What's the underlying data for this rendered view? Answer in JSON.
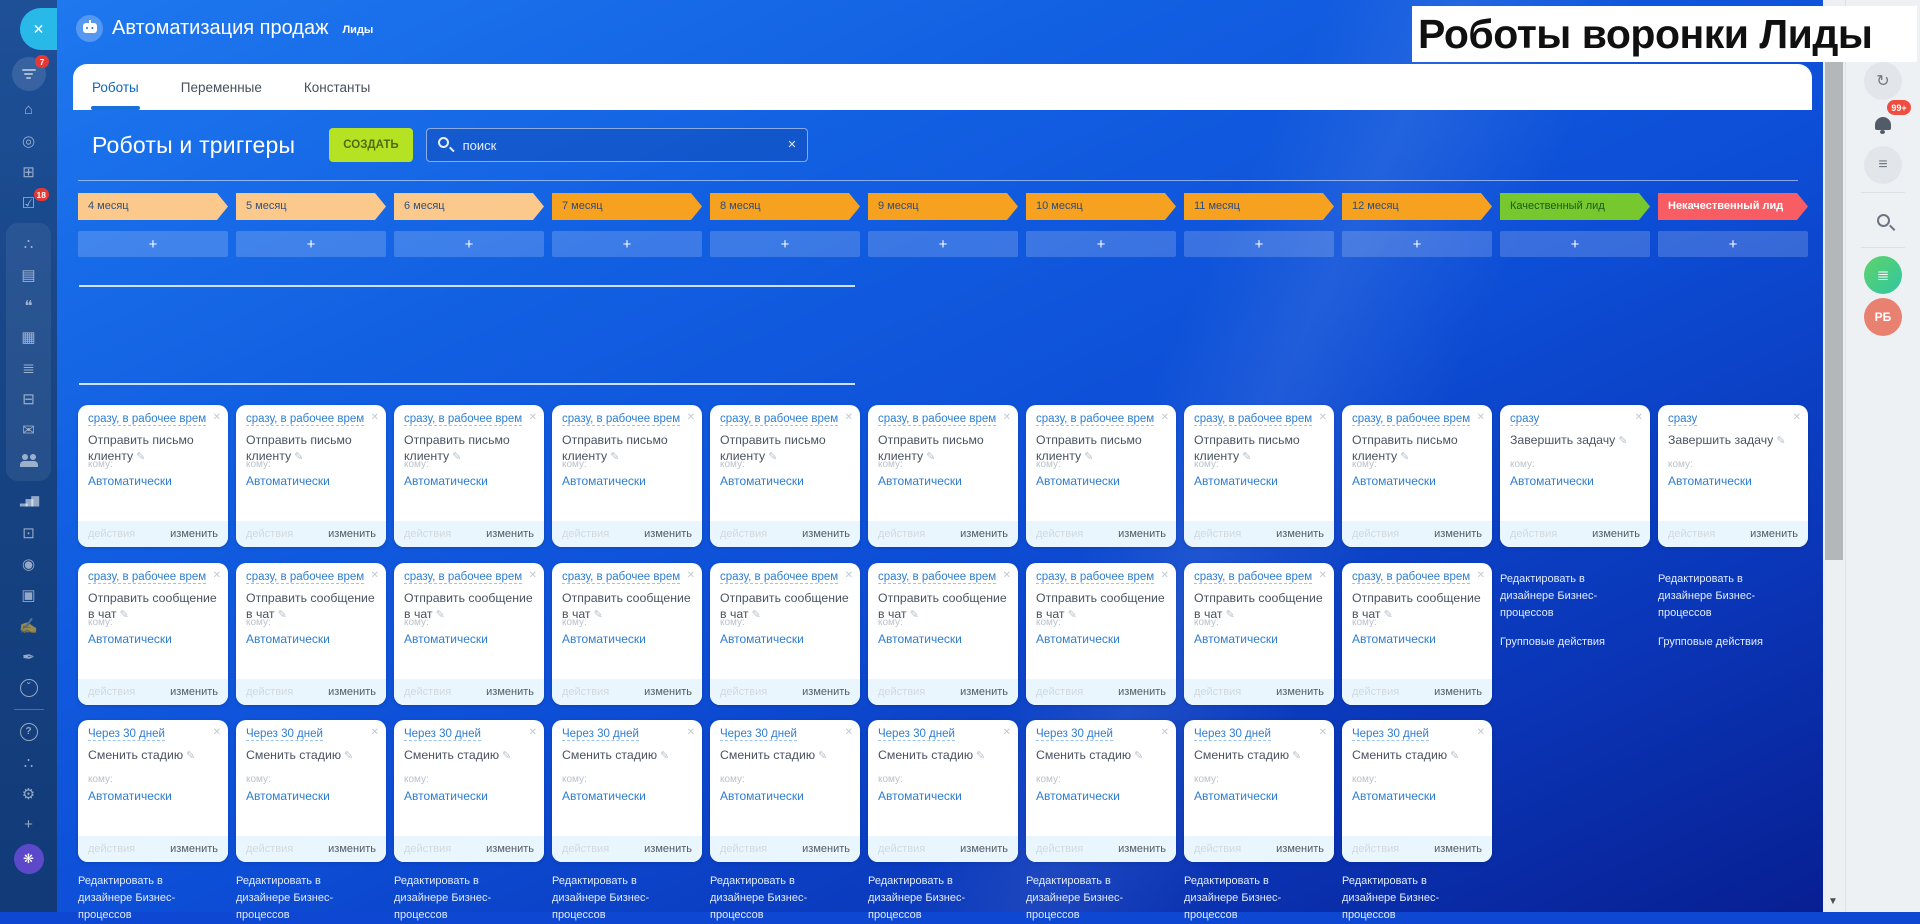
{
  "overlay": {
    "title": "Роботы воронки Лиды"
  },
  "app_header": {
    "title": "Автоматизация продаж",
    "entity": "Лиды"
  },
  "tabs": [
    {
      "label": "Роботы",
      "active": true
    },
    {
      "label": "Переменные",
      "active": false
    },
    {
      "label": "Константы",
      "active": false
    }
  ],
  "toolbar": {
    "heading": "Роботы и триггеры",
    "create_label": "СОЗДАТЬ",
    "search_placeholder": "поиск",
    "clear_icon": "✕"
  },
  "board": {
    "labels": {
      "to": "кому:",
      "assignee": "Автоматически",
      "actions": "действия",
      "edit": "изменить",
      "add": "+",
      "close": "✕",
      "pencil": "✎"
    },
    "links": {
      "designer": "Редактировать в дизайнере Бизнес-процессов",
      "group_actions": "Групповые действия"
    },
    "stages": [
      {
        "name": "4 месяц",
        "color": "#fbc98b",
        "text_color": "#33517d",
        "bottom_designer_link": true,
        "robots": [
          {
            "when": "сразу, в рабочее время",
            "action": "Отправить письмо клиенту"
          },
          {
            "when": "сразу, в рабочее врем...",
            "action": "Отправить сообщение в чат"
          },
          {
            "when": "Через 30 дней",
            "action": "Сменить стадию"
          }
        ]
      },
      {
        "name": "5 месяц",
        "color": "#fbc98b",
        "text_color": "#33517d",
        "bottom_designer_link": true,
        "robots": [
          {
            "when": "сразу, в рабочее время",
            "action": "Отправить письмо клиенту"
          },
          {
            "when": "сразу, в рабочее врем...",
            "action": "Отправить сообщение в чат"
          },
          {
            "when": "Через 30 дней",
            "action": "Сменить стадию"
          }
        ]
      },
      {
        "name": "6 месяц",
        "color": "#fbc98b",
        "text_color": "#33517d",
        "bottom_designer_link": true,
        "robots": [
          {
            "when": "сразу, в рабочее время",
            "action": "Отправить письмо клиенту"
          },
          {
            "when": "сразу, в рабочее врем...",
            "action": "Отправить сообщение в чат"
          },
          {
            "when": "Через 30 дней",
            "action": "Сменить стадию"
          }
        ]
      },
      {
        "name": "7 месяц",
        "color": "#f6a11f",
        "text_color": "#2d4d7c",
        "bottom_designer_link": true,
        "robots": [
          {
            "when": "сразу, в рабочее время",
            "action": "Отправить письмо клиенту"
          },
          {
            "when": "сразу, в рабочее врем...",
            "action": "Отправить сообщение в чат"
          },
          {
            "when": "Через 30 дней",
            "action": "Сменить стадию"
          }
        ]
      },
      {
        "name": "8 месяц",
        "color": "#f6a11f",
        "text_color": "#2d4d7c",
        "bottom_designer_link": true,
        "robots": [
          {
            "when": "сразу, в рабочее время",
            "action": "Отправить письмо клиенту"
          },
          {
            "when": "сразу, в рабочее врем...",
            "action": "Отправить сообщение в чат"
          },
          {
            "when": "Через 30 дней",
            "action": "Сменить стадию"
          }
        ]
      },
      {
        "name": "9 месяц",
        "color": "#f6a11f",
        "text_color": "#2d4d7c",
        "bottom_designer_link": true,
        "robots": [
          {
            "when": "сразу, в рабочее время",
            "action": "Отправить письмо клиенту"
          },
          {
            "when": "сразу, в рабочее врем...",
            "action": "Отправить сообщение в чат"
          },
          {
            "when": "Через 30 дней",
            "action": "Сменить стадию"
          }
        ]
      },
      {
        "name": "10 месяц",
        "color": "#f6a11f",
        "text_color": "#2d4d7c",
        "bottom_designer_link": true,
        "robots": [
          {
            "when": "сразу, в рабочее время",
            "action": "Отправить письмо клиенту"
          },
          {
            "when": "сразу, в рабочее врем...",
            "action": "Отправить сообщение в чат"
          },
          {
            "when": "Через 30 дней",
            "action": "Сменить стадию"
          }
        ]
      },
      {
        "name": "11 месяц",
        "color": "#f6a11f",
        "text_color": "#2d4d7c",
        "bottom_designer_link": true,
        "robots": [
          {
            "when": "сразу, в рабочее время",
            "action": "Отправить письмо клиенту"
          },
          {
            "when": "сразу, в рабочее врем...",
            "action": "Отправить сообщение в чат"
          },
          {
            "when": "Через 30 дней",
            "action": "Сменить стадию"
          }
        ]
      },
      {
        "name": "12 месяц",
        "color": "#f6a11f",
        "text_color": "#2d4d7c",
        "bottom_designer_link": true,
        "robots": [
          {
            "when": "сразу, в рабочее время",
            "action": "Отправить письмо клиенту"
          },
          {
            "when": "сразу, в рабочее врем...",
            "action": "Отправить сообщение в чат"
          },
          {
            "when": "Через 30 дней",
            "action": "Сменить стадию"
          }
        ]
      },
      {
        "name": "Качественный лид",
        "color": "#76c82e",
        "text_color": "#1d5a17",
        "side_links": true,
        "robots": [
          {
            "when": "сразу",
            "action": "Завершить задачу"
          }
        ]
      },
      {
        "name": "Некачественный лид",
        "color": "#f75d63",
        "text_color": "#ffffff",
        "bold": true,
        "side_links": true,
        "robots": [
          {
            "when": "сразу",
            "action": "Завершить задачу"
          }
        ]
      }
    ]
  },
  "left_sidebar": {
    "collapse_icon": "✕",
    "top_items": [
      {
        "name": "crm-funnel",
        "type": "funnel",
        "badge": "7",
        "active": true
      },
      {
        "name": "company",
        "glyph": "⌂"
      },
      {
        "name": "goals",
        "glyph": "◎"
      },
      {
        "name": "shop",
        "glyph": "⊞"
      },
      {
        "name": "tasks",
        "glyph": "☑",
        "badge": "18"
      }
    ],
    "group_items": [
      {
        "name": "collab",
        "glyph": "∴"
      },
      {
        "name": "feed",
        "glyph": "▤"
      },
      {
        "name": "messenger",
        "glyph": "❝"
      },
      {
        "name": "calendar",
        "glyph": "▦"
      },
      {
        "name": "docs",
        "glyph": "≣"
      },
      {
        "name": "drive",
        "glyph": "⊟"
      },
      {
        "name": "mail",
        "glyph": "✉"
      },
      {
        "name": "people",
        "type": "people"
      }
    ],
    "bottom_items": [
      {
        "name": "analytics",
        "type": "chart",
        "glyph": "▂▅▇"
      },
      {
        "name": "contact-center",
        "glyph": "⊡"
      },
      {
        "name": "automation",
        "glyph": "◉"
      },
      {
        "name": "market",
        "glyph": "▣"
      },
      {
        "name": "workflows",
        "glyph": "✍"
      },
      {
        "name": "sign",
        "glyph": "✒"
      },
      {
        "name": "more",
        "type": "circled",
        "glyph": "ˇ"
      },
      {
        "type": "divider"
      },
      {
        "name": "help",
        "type": "circled",
        "glyph": "?"
      },
      {
        "name": "network",
        "glyph": "∴"
      },
      {
        "name": "settings",
        "glyph": "⚙"
      },
      {
        "name": "add",
        "glyph": "+"
      },
      {
        "name": "sites",
        "type": "purple",
        "glyph": "❋"
      }
    ]
  },
  "right_sidebar": {
    "items": [
      {
        "name": "history",
        "type": "circle",
        "glyph": "↻"
      },
      {
        "name": "notifications",
        "type": "bell",
        "badge": "99+"
      },
      {
        "name": "messages",
        "type": "circle",
        "glyph": "≡"
      },
      {
        "type": "divider"
      },
      {
        "name": "search",
        "type": "mag"
      },
      {
        "type": "divider"
      },
      {
        "name": "news",
        "type": "green",
        "glyph": "≣"
      },
      {
        "name": "profile",
        "type": "avatar",
        "text": "РБ"
      }
    ]
  },
  "colors": {
    "accent_create": "#b5e324",
    "link_blue": "#2e7dd1",
    "badge_red": "#e53935"
  }
}
